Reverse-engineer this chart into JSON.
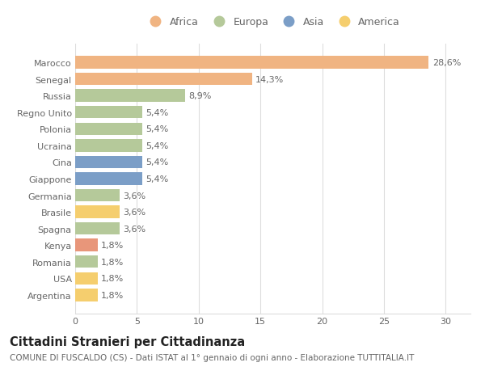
{
  "categories": [
    "Marocco",
    "Senegal",
    "Russia",
    "Regno Unito",
    "Polonia",
    "Ucraina",
    "Cina",
    "Giappone",
    "Germania",
    "Brasile",
    "Spagna",
    "Kenya",
    "Romania",
    "USA",
    "Argentina"
  ],
  "values": [
    28.6,
    14.3,
    8.9,
    5.4,
    5.4,
    5.4,
    5.4,
    5.4,
    3.6,
    3.6,
    3.6,
    1.8,
    1.8,
    1.8,
    1.8
  ],
  "labels": [
    "28,6%",
    "14,3%",
    "8,9%",
    "5,4%",
    "5,4%",
    "5,4%",
    "5,4%",
    "5,4%",
    "3,6%",
    "3,6%",
    "3,6%",
    "1,8%",
    "1,8%",
    "1,8%",
    "1,8%"
  ],
  "colors": [
    "#F0B482",
    "#F0B482",
    "#B5C99A",
    "#B5C99A",
    "#B5C99A",
    "#B5C99A",
    "#7B9EC7",
    "#7B9EC7",
    "#B5C99A",
    "#F5CE6E",
    "#B5C99A",
    "#E8967A",
    "#B5C99A",
    "#F5CE6E",
    "#F5CE6E"
  ],
  "legend_labels": [
    "Africa",
    "Europa",
    "Asia",
    "America"
  ],
  "legend_colors": [
    "#F0B482",
    "#B5C99A",
    "#7B9EC7",
    "#F5CE6E"
  ],
  "title": "Cittadini Stranieri per Cittadinanza",
  "subtitle": "COMUNE DI FUSCALDO (CS) - Dati ISTAT al 1° gennaio di ogni anno - Elaborazione TUTTITALIA.IT",
  "xlim": [
    0,
    32
  ],
  "xticks": [
    0,
    5,
    10,
    15,
    20,
    25,
    30
  ],
  "background_color": "#ffffff",
  "grid_color": "#dddddd",
  "label_fontsize": 8.0,
  "tick_fontsize": 8.0,
  "title_fontsize": 10.5,
  "subtitle_fontsize": 7.5,
  "bar_height": 0.75
}
